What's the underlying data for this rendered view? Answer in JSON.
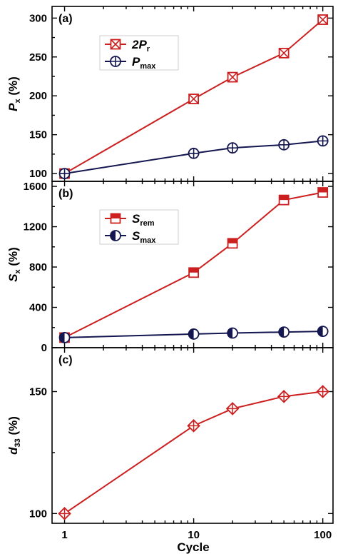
{
  "chart_data": [
    {
      "panel": "(a)",
      "type": "line",
      "x_scale": "log",
      "xlim": [
        0.8,
        120
      ],
      "ylim": [
        90,
        315
      ],
      "yticks": [
        "100",
        "150",
        "200",
        "250",
        "300"
      ],
      "ylabel": {
        "italic": "P",
        "sub": "x",
        "unit": " (%)"
      },
      "x": [
        1,
        10,
        20,
        50,
        100
      ],
      "series": [
        {
          "name": "2Pr",
          "label_main": "2P",
          "label_sub": "r",
          "color": "#cc1f1f",
          "marker": "boxed-x",
          "values": [
            100,
            196,
            224,
            255,
            298
          ]
        },
        {
          "name": "Pmax",
          "label_main": "P",
          "label_sub": "max",
          "color": "#141650",
          "marker": "circle-plus",
          "values": [
            100,
            126,
            133,
            137,
            142
          ]
        }
      ]
    },
    {
      "panel": "(b)",
      "type": "line",
      "x_scale": "log",
      "xlim": [
        0.8,
        120
      ],
      "ylim": [
        0,
        1650
      ],
      "yticks": [
        "0",
        "400",
        "800",
        "1200",
        "1600"
      ],
      "ylabel": {
        "italic": "S",
        "sub": "x",
        "unit": " (%)"
      },
      "x": [
        1,
        10,
        20,
        50,
        100
      ],
      "series": [
        {
          "name": "Srem",
          "label_main": "S",
          "label_sub": "rem",
          "color": "#cc1f1f",
          "marker": "half-square",
          "values": [
            100,
            745,
            1035,
            1465,
            1540
          ]
        },
        {
          "name": "Smax",
          "label_main": "S",
          "label_sub": "max",
          "color": "#141650",
          "marker": "half-circle",
          "values": [
            100,
            135,
            145,
            155,
            162
          ]
        }
      ]
    },
    {
      "panel": "(c)",
      "type": "line",
      "x_scale": "log",
      "xlim": [
        0.8,
        120
      ],
      "ylim": [
        96,
        168
      ],
      "yticks": [
        "100",
        "150"
      ],
      "ylabel": {
        "italic": "d",
        "sub": "33",
        "unit": " (%)"
      },
      "x": [
        1,
        10,
        20,
        50,
        100
      ],
      "series": [
        {
          "name": "d33",
          "color": "#cc1f1f",
          "marker": "diamond-plus",
          "values": [
            100,
            136,
            143,
            148,
            150
          ]
        }
      ]
    }
  ],
  "xaxis": {
    "label": "Cycle",
    "ticks": [
      "1",
      "10",
      "100"
    ]
  }
}
